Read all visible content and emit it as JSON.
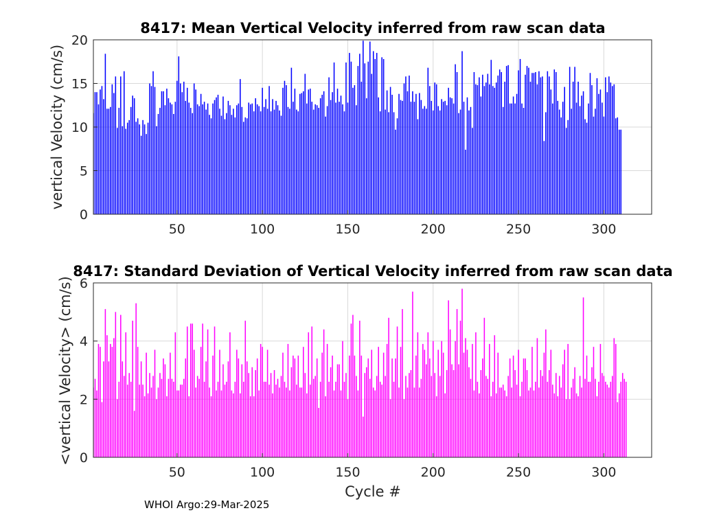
{
  "footer": "WHOI Argo:29-Mar-2025",
  "chart_data": [
    {
      "type": "bar",
      "id": "mean",
      "title": "8417: Mean Vertical Velocity inferred from raw scan data",
      "xlabel": "",
      "ylabel": "vertical Velocity (cm/s)",
      "xlim": [
        1,
        328
      ],
      "ylim": [
        0,
        20
      ],
      "xticks": [
        50,
        100,
        150,
        200,
        250,
        300
      ],
      "yticks": [
        0,
        5,
        10,
        15,
        20
      ],
      "grid": true,
      "color": "#0000ff",
      "x_start": 1,
      "values": [
        11.6,
        14.0,
        14.0,
        12.6,
        14.3,
        14.7,
        13.2,
        18.4,
        12.1,
        12.1,
        12.3,
        14.9,
        13.9,
        15.8,
        9.9,
        12.2,
        15.8,
        10.1,
        16.4,
        9.8,
        10.5,
        10.8,
        12.3,
        13.6,
        13.3,
        10.6,
        11.0,
        10.3,
        9.0,
        10.8,
        10.3,
        9.2,
        10.5,
        15.0,
        14.7,
        16.4,
        14.6,
        10.1,
        11.5,
        12.2,
        14.1,
        14.1,
        12.5,
        14.4,
        13.3,
        12.8,
        12.6,
        11.5,
        12.9,
        15.3,
        18.1,
        15.0,
        14.0,
        15.2,
        13.0,
        14.5,
        12.8,
        12.2,
        11.6,
        15.0,
        14.3,
        12.6,
        12.4,
        13.8,
        12.6,
        12.9,
        12.0,
        12.7,
        11.4,
        11.0,
        12.7,
        13.1,
        13.4,
        13.7,
        12.1,
        11.3,
        13.5,
        10.9,
        11.6,
        13.0,
        12.5,
        11.4,
        12.1,
        11.1,
        12.5,
        12.7,
        15.5,
        12.3,
        10.6,
        11.1,
        11.0,
        12.8,
        12.6,
        12.7,
        11.8,
        13.3,
        12.6,
        12.4,
        11.8,
        14.5,
        12.3,
        13.2,
        12.1,
        14.7,
        11.8,
        13.2,
        12.0,
        13.0,
        12.5,
        11.9,
        11.3,
        14.5,
        15.3,
        14.8,
        12.3,
        12.1,
        16.8,
        12.9,
        14.4,
        12.0,
        11.8,
        13.8,
        13.9,
        14.1,
        16.1,
        12.7,
        14.3,
        14.4,
        12.9,
        12.0,
        12.6,
        12.5,
        12.2,
        13.3,
        13.7,
        14.1,
        11.2,
        12.4,
        15.7,
        13.1,
        14.0,
        17.4,
        12.8,
        14.4,
        12.9,
        13.6,
        12.6,
        11.8,
        17.4,
        12.8,
        18.5,
        17.5,
        14.5,
        14.8,
        12.5,
        17.0,
        18.4,
        15.2,
        19.9,
        17.3,
        13.3,
        17.5,
        19.8,
        16.1,
        18.7,
        17.8,
        18.5,
        13.4,
        11.8,
        18.0,
        17.8,
        12.0,
        14.2,
        11.7,
        14.6,
        13.7,
        11.7,
        9.7,
        11.0,
        13.8,
        13.1,
        13.0,
        15.0,
        15.8,
        14.1,
        15.9,
        12.9,
        14.1,
        12.9,
        13.8,
        10.9,
        13.9,
        13.1,
        12.1,
        12.4,
        12.1,
        16.8,
        14.7,
        13.0,
        11.9,
        15.1,
        14.9,
        12.4,
        11.9,
        13.2,
        12.9,
        13.0,
        12.5,
        14.5,
        13.4,
        13.3,
        12.7,
        17.2,
        16.3,
        11.6,
        12.0,
        18.7,
        12.9,
        7.4,
        13.4,
        11.9,
        12.3,
        9.9,
        16.3,
        14.9,
        14.8,
        15.7,
        13.5,
        16.0,
        14.7,
        15.1,
        16.1,
        14.9,
        17.7,
        14.7,
        14.5,
        15.1,
        15.9,
        16.6,
        16.3,
        12.3,
        15.2,
        17.0,
        17.1,
        12.7,
        12.7,
        13.5,
        12.7,
        13.8,
        16.5,
        17.8,
        12.7,
        12.2,
        16.0,
        17.0,
        16.8,
        15.2,
        16.2,
        16.2,
        16.3,
        14.9,
        16.4,
        15.7,
        15.8,
        8.4,
        11.7,
        16.4,
        15.8,
        14.3,
        12.7,
        16.6,
        16.3,
        13.0,
        12.0,
        11.1,
        12.9,
        14.6,
        9.9,
        10.8,
        16.9,
        12.1,
        15.2,
        16.9,
        12.8,
        15.2,
        12.4,
        13.6,
        14.1,
        10.9,
        10.5,
        12.7,
        16.2,
        14.8,
        11.2,
        12.1,
        15.6,
        13.8,
        14.3,
        12.8,
        11.2,
        15.7,
        14.0,
        15.8,
        15.1,
        14.7,
        14.9,
        11.0,
        11.1,
        9.7,
        9.7
      ],
      "bar_count_note": ""
    },
    {
      "type": "bar",
      "id": "std",
      "title": "8417: Standard Deviation of Vertical Velocity inferred from raw scan data",
      "xlabel": "Cycle #",
      "ylabel": "<vertical Velocity> (cm/s)",
      "xlim": [
        1,
        328
      ],
      "ylim": [
        0,
        6
      ],
      "xticks": [
        50,
        100,
        150,
        200,
        250,
        300
      ],
      "yticks": [
        0,
        2,
        4,
        6
      ],
      "grid": true,
      "color": "#ff00ff",
      "x_start": 1,
      "values": [
        2.4,
        2.7,
        2.3,
        3.9,
        3.8,
        1.9,
        3.3,
        5.1,
        4.2,
        3.3,
        3.9,
        3.8,
        4.1,
        5.0,
        2.0,
        2.6,
        4.9,
        3.3,
        2.8,
        4.3,
        2.5,
        2.9,
        2.6,
        4.7,
        1.6,
        5.3,
        3.8,
        2.5,
        3.3,
        2.5,
        2.1,
        3.6,
        2.2,
        2.9,
        2.4,
        2.8,
        3.7,
        2.0,
        2.4,
        2.9,
        2.7,
        3.4,
        3.2,
        2.1,
        2.7,
        3.6,
        2.7,
        2.6,
        4.3,
        2.3,
        2.3,
        2.5,
        2.5,
        2.7,
        3.4,
        4.5,
        2.1,
        4.6,
        4.6,
        3.7,
        2.4,
        2.8,
        2.7,
        3.8,
        4.6,
        2.6,
        3.3,
        4.4,
        2.4,
        2.1,
        3.5,
        4.5,
        2.3,
        2.6,
        3.7,
        2.3,
        3.2,
        2.5,
        2.6,
        3.3,
        4.3,
        2.3,
        2.2,
        2.6,
        3.7,
        3.4,
        2.2,
        3.2,
        2.6,
        4.7,
        3.3,
        2.9,
        2.1,
        3.1,
        2.1,
        3.0,
        3.4,
        2.3,
        3.9,
        3.8,
        2.6,
        2.6,
        3.7,
        2.5,
        2.9,
        2.2,
        3.0,
        2.5,
        2.7,
        2.4,
        2.8,
        3.6,
        2.6,
        2.4,
        3.9,
        2.3,
        3.1,
        3.5,
        3.4,
        2.5,
        3.5,
        2.4,
        2.4,
        3.8,
        2.9,
        2.2,
        4.3,
        2.5,
        4.5,
        2.7,
        2.8,
        3.4,
        1.7,
        2.6,
        3.6,
        4.4,
        2.1,
        3.9,
        2.6,
        3.1,
        3.5,
        2.3,
        2.6,
        3.2,
        3.2,
        2.3,
        4.0,
        2.6,
        2.9,
        2.0,
        3.5,
        4.6,
        4.9,
        3.5,
        2.8,
        2.3,
        4.7,
        3.5,
        1.4,
        2.9,
        3.1,
        3.4,
        2.7,
        3.7,
        2.4,
        2.3,
        2.8,
        3.8,
        2.6,
        2.5,
        3.6,
        2.8,
        3.9,
        4.8,
        2.0,
        3.4,
        2.6,
        3.4,
        4.5,
        2.4,
        3.8,
        5.1,
        2.0,
        2.8,
        2.4,
        2.9,
        3.0,
        5.7,
        2.4,
        3.5,
        4.3,
        2.4,
        2.7,
        3.9,
        3.7,
        3.2,
        4.3,
        3.4,
        2.8,
        4.0,
        2.9,
        2.1,
        3.7,
        2.8,
        4.0,
        3.6,
        2.2,
        3.0,
        5.4,
        4.4,
        3.2,
        3.0,
        4.0,
        5.1,
        3.2,
        4.7,
        5.8,
        3.6,
        4.1,
        3.7,
        3.1,
        2.7,
        3.9,
        2.3,
        4.3,
        2.6,
        2.2,
        3.0,
        3.4,
        4.8,
        2.8,
        2.7,
        3.9,
        2.1,
        2.6,
        4.2,
        2.2,
        3.6,
        2.4,
        2.4,
        2.5,
        2.3,
        2.1,
        2.8,
        3.4,
        2.4,
        3.5,
        3.0,
        2.5,
        3.7,
        2.1,
        2.6,
        3.4,
        3.4,
        3.0,
        2.3,
        2.4,
        3.8,
        2.3,
        2.6,
        4.1,
        2.4,
        3.0,
        2.8,
        3.6,
        4.4,
        2.6,
        3.0,
        3.7,
        2.5,
        2.2,
        2.9,
        2.1,
        2.8,
        2.4,
        3.2,
        3.7,
        2.0,
        3.9,
        2.0,
        2.4,
        2.7,
        3.1,
        2.2,
        2.1,
        2.8,
        2.4,
        5.5,
        2.7,
        3.5,
        2.6,
        2.6,
        3.1,
        3.8,
        2.7,
        2.1,
        2.6,
        3.9,
        2.9,
        2.8,
        2.6,
        2.5,
        2.4,
        2.6,
        2.8,
        4.1,
        3.9,
        1.9,
        2.2,
        2.6,
        2.9,
        2.7,
        2.6
      ],
      "bar_count_note": ""
    }
  ]
}
